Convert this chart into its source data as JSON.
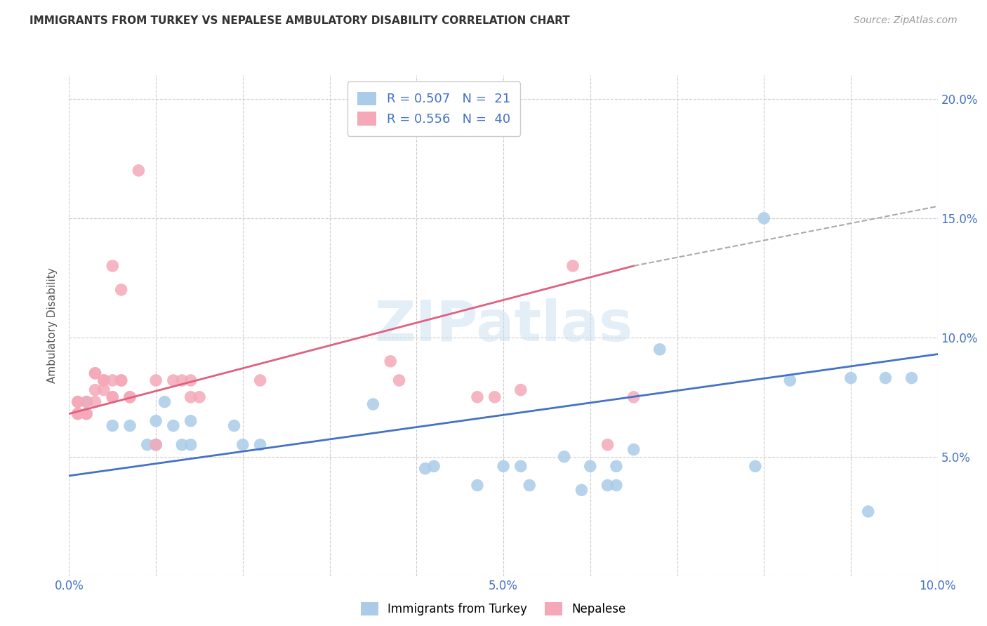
{
  "title": "IMMIGRANTS FROM TURKEY VS NEPALESE AMBULATORY DISABILITY CORRELATION CHART",
  "source": "Source: ZipAtlas.com",
  "ylabel": "Ambulatory Disability",
  "xlim": [
    0.0,
    0.1
  ],
  "ylim": [
    0.0,
    0.21
  ],
  "x_ticks": [
    0.0,
    0.01,
    0.02,
    0.03,
    0.04,
    0.05,
    0.06,
    0.07,
    0.08,
    0.09,
    0.1
  ],
  "x_tick_labels": [
    "0.0%",
    "",
    "",
    "",
    "",
    "5.0%",
    "",
    "",
    "",
    "",
    "10.0%"
  ],
  "y_ticks": [
    0.0,
    0.05,
    0.1,
    0.15,
    0.2
  ],
  "y_tick_labels_right": [
    "",
    "5.0%",
    "10.0%",
    "15.0%",
    "20.0%"
  ],
  "color_turkey": "#aacce8",
  "color_nepalese": "#f5a8b8",
  "line_color_turkey": "#4472c4",
  "line_color_nepalese": "#e06080",
  "line_color_dashed": "#aaaaaa",
  "watermark": "ZIPatlas",
  "turkey_points": [
    [
      0.002,
      0.073
    ],
    [
      0.005,
      0.063
    ],
    [
      0.007,
      0.063
    ],
    [
      0.009,
      0.055
    ],
    [
      0.01,
      0.055
    ],
    [
      0.01,
      0.065
    ],
    [
      0.011,
      0.073
    ],
    [
      0.012,
      0.063
    ],
    [
      0.013,
      0.055
    ],
    [
      0.014,
      0.055
    ],
    [
      0.014,
      0.065
    ],
    [
      0.019,
      0.063
    ],
    [
      0.02,
      0.055
    ],
    [
      0.022,
      0.055
    ],
    [
      0.035,
      0.072
    ],
    [
      0.041,
      0.045
    ],
    [
      0.042,
      0.046
    ],
    [
      0.047,
      0.038
    ],
    [
      0.05,
      0.046
    ],
    [
      0.052,
      0.046
    ],
    [
      0.053,
      0.038
    ],
    [
      0.057,
      0.05
    ],
    [
      0.059,
      0.036
    ],
    [
      0.06,
      0.046
    ],
    [
      0.062,
      0.038
    ],
    [
      0.063,
      0.038
    ],
    [
      0.063,
      0.046
    ],
    [
      0.065,
      0.053
    ],
    [
      0.068,
      0.095
    ],
    [
      0.079,
      0.046
    ],
    [
      0.08,
      0.15
    ],
    [
      0.083,
      0.082
    ],
    [
      0.09,
      0.083
    ],
    [
      0.092,
      0.027
    ],
    [
      0.094,
      0.083
    ],
    [
      0.097,
      0.083
    ]
  ],
  "nepalese_points": [
    [
      0.001,
      0.073
    ],
    [
      0.001,
      0.073
    ],
    [
      0.001,
      0.068
    ],
    [
      0.001,
      0.068
    ],
    [
      0.002,
      0.073
    ],
    [
      0.002,
      0.068
    ],
    [
      0.002,
      0.068
    ],
    [
      0.003,
      0.085
    ],
    [
      0.003,
      0.078
    ],
    [
      0.003,
      0.073
    ],
    [
      0.003,
      0.085
    ],
    [
      0.004,
      0.078
    ],
    [
      0.004,
      0.082
    ],
    [
      0.004,
      0.082
    ],
    [
      0.005,
      0.082
    ],
    [
      0.005,
      0.075
    ],
    [
      0.005,
      0.075
    ],
    [
      0.005,
      0.13
    ],
    [
      0.006,
      0.12
    ],
    [
      0.006,
      0.082
    ],
    [
      0.006,
      0.082
    ],
    [
      0.007,
      0.075
    ],
    [
      0.007,
      0.075
    ],
    [
      0.008,
      0.17
    ],
    [
      0.01,
      0.082
    ],
    [
      0.01,
      0.055
    ],
    [
      0.012,
      0.082
    ],
    [
      0.013,
      0.082
    ],
    [
      0.014,
      0.082
    ],
    [
      0.014,
      0.075
    ],
    [
      0.015,
      0.075
    ],
    [
      0.022,
      0.082
    ],
    [
      0.037,
      0.09
    ],
    [
      0.038,
      0.082
    ],
    [
      0.047,
      0.075
    ],
    [
      0.049,
      0.075
    ],
    [
      0.052,
      0.078
    ],
    [
      0.058,
      0.13
    ],
    [
      0.062,
      0.055
    ],
    [
      0.065,
      0.075
    ]
  ],
  "turkey_line": [
    [
      0.0,
      0.042
    ],
    [
      0.1,
      0.093
    ]
  ],
  "nepalese_line": [
    [
      0.0,
      0.068
    ],
    [
      0.065,
      0.13
    ]
  ],
  "nepalese_line_dashed": [
    [
      0.065,
      0.13
    ],
    [
      0.1,
      0.155
    ]
  ]
}
